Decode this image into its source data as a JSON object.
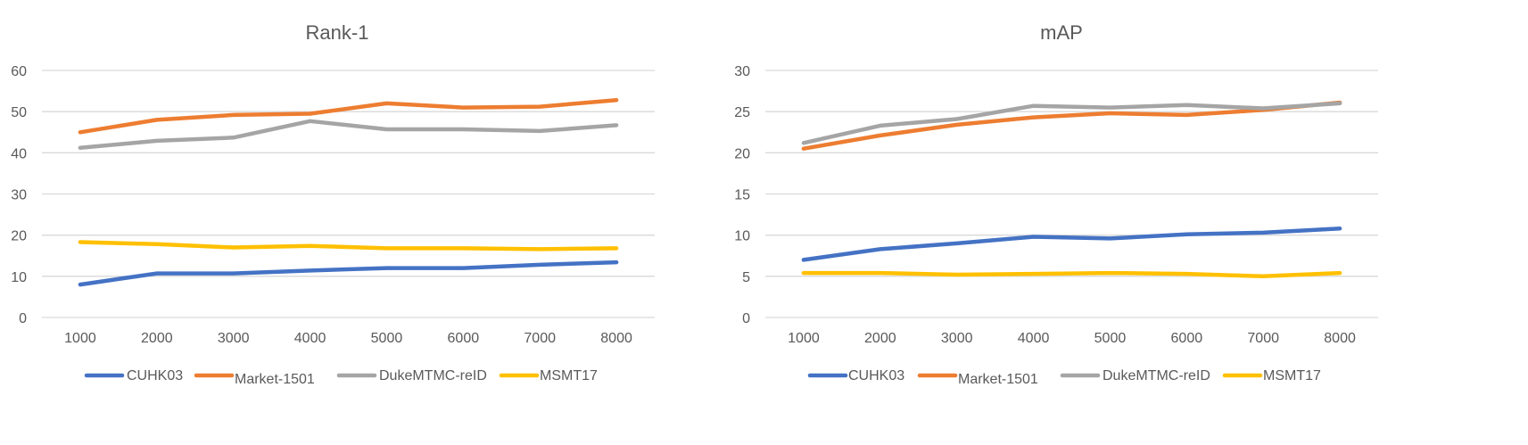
{
  "figure": {
    "colors": {
      "CUHK03": "#4472C4",
      "Market-1501": "#ED7D31",
      "DukeMTMC-reID": "#A5A5A5",
      "MSMT17": "#FFC000",
      "gridline": "#D9D9D9",
      "text": "#595959"
    }
  },
  "chart_data": [
    {
      "type": "line",
      "title": "Rank-1",
      "xlabel": "",
      "ylabel": "",
      "x": [
        "1000",
        "2000",
        "3000",
        "4000",
        "5000",
        "6000",
        "7000",
        "8000"
      ],
      "ylim": [
        0,
        60
      ],
      "yticks": [
        "0",
        "10",
        "20",
        "30",
        "40",
        "50",
        "60"
      ],
      "grid": true,
      "legend_position": "bottom",
      "series": [
        {
          "name": "CUHK03",
          "values": [
            8.0,
            10.7,
            10.7,
            11.4,
            12.0,
            12.0,
            12.8,
            13.4
          ]
        },
        {
          "name": "Market-1501",
          "values": [
            45.0,
            48.0,
            49.2,
            49.5,
            52.0,
            51.0,
            51.2,
            52.8
          ]
        },
        {
          "name": "DukeMTMC-reID",
          "values": [
            41.2,
            42.9,
            43.7,
            47.7,
            45.7,
            45.7,
            45.3,
            46.7
          ]
        },
        {
          "name": "MSMT17",
          "values": [
            18.3,
            17.8,
            17.0,
            17.4,
            16.8,
            16.8,
            16.6,
            16.8
          ]
        }
      ]
    },
    {
      "type": "line",
      "title": "mAP",
      "xlabel": "",
      "ylabel": "",
      "x": [
        "1000",
        "2000",
        "3000",
        "4000",
        "5000",
        "6000",
        "7000",
        "8000"
      ],
      "ylim": [
        0,
        30
      ],
      "yticks": [
        "0",
        "5",
        "10",
        "15",
        "20",
        "25",
        "30"
      ],
      "grid": true,
      "legend_position": "bottom",
      "series": [
        {
          "name": "CUHK03",
          "values": [
            7.0,
            8.3,
            9.0,
            9.8,
            9.6,
            10.1,
            10.3,
            10.8
          ]
        },
        {
          "name": "Market-1501",
          "values": [
            20.5,
            22.1,
            23.4,
            24.3,
            24.8,
            24.6,
            25.2,
            26.1
          ]
        },
        {
          "name": "DukeMTMC-reID",
          "values": [
            21.2,
            23.3,
            24.1,
            25.7,
            25.5,
            25.8,
            25.4,
            26.0
          ]
        },
        {
          "name": "MSMT17",
          "values": [
            5.4,
            5.4,
            5.2,
            5.3,
            5.4,
            5.3,
            5.0,
            5.4
          ]
        }
      ]
    }
  ]
}
